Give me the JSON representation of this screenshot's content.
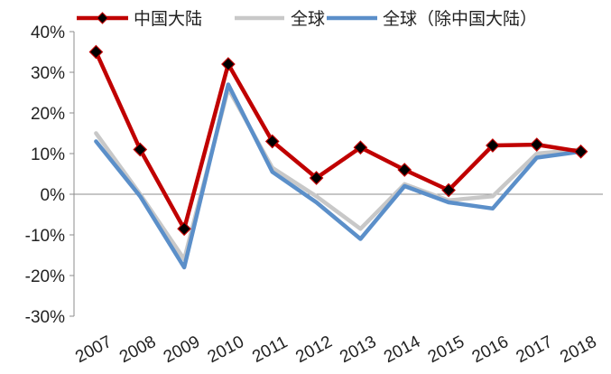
{
  "chart_data": {
    "type": "line",
    "title": "",
    "xlabel": "",
    "ylabel": "",
    "categories": [
      "2007",
      "2008",
      "2009",
      "2010",
      "2011",
      "2012",
      "2013",
      "2014",
      "2015",
      "2016",
      "2017",
      "2018"
    ],
    "ylim": [
      -30,
      40
    ],
    "ytick_values": [
      40,
      30,
      20,
      10,
      0,
      -10,
      -20,
      -30
    ],
    "ytick_labels": [
      "40%",
      "30%",
      "20%",
      "10%",
      "0%",
      "-10%",
      "-20%",
      "-30%"
    ],
    "grid": false,
    "legend_position": "top",
    "series": [
      {
        "name": "中国大陆",
        "color": "#C00000",
        "marker": "diamond",
        "marker_color": "#000000",
        "values": [
          35,
          11,
          -8.5,
          32,
          13,
          4,
          11.5,
          6,
          1,
          12,
          12.2,
          10.5
        ]
      },
      {
        "name": "全球",
        "color": "#C8C8C8",
        "marker": "none",
        "values": [
          15,
          0,
          -16,
          26,
          6.5,
          -0.5,
          -8.5,
          2.5,
          -1.5,
          -0.5,
          10,
          11
        ]
      },
      {
        "name": "全球（除中国大陆）",
        "color": "#5B8FC9",
        "marker": "none",
        "values": [
          13,
          -0.5,
          -18,
          27,
          5.5,
          -2,
          -11,
          2,
          -2,
          -3.5,
          9,
          10.5
        ]
      }
    ]
  }
}
